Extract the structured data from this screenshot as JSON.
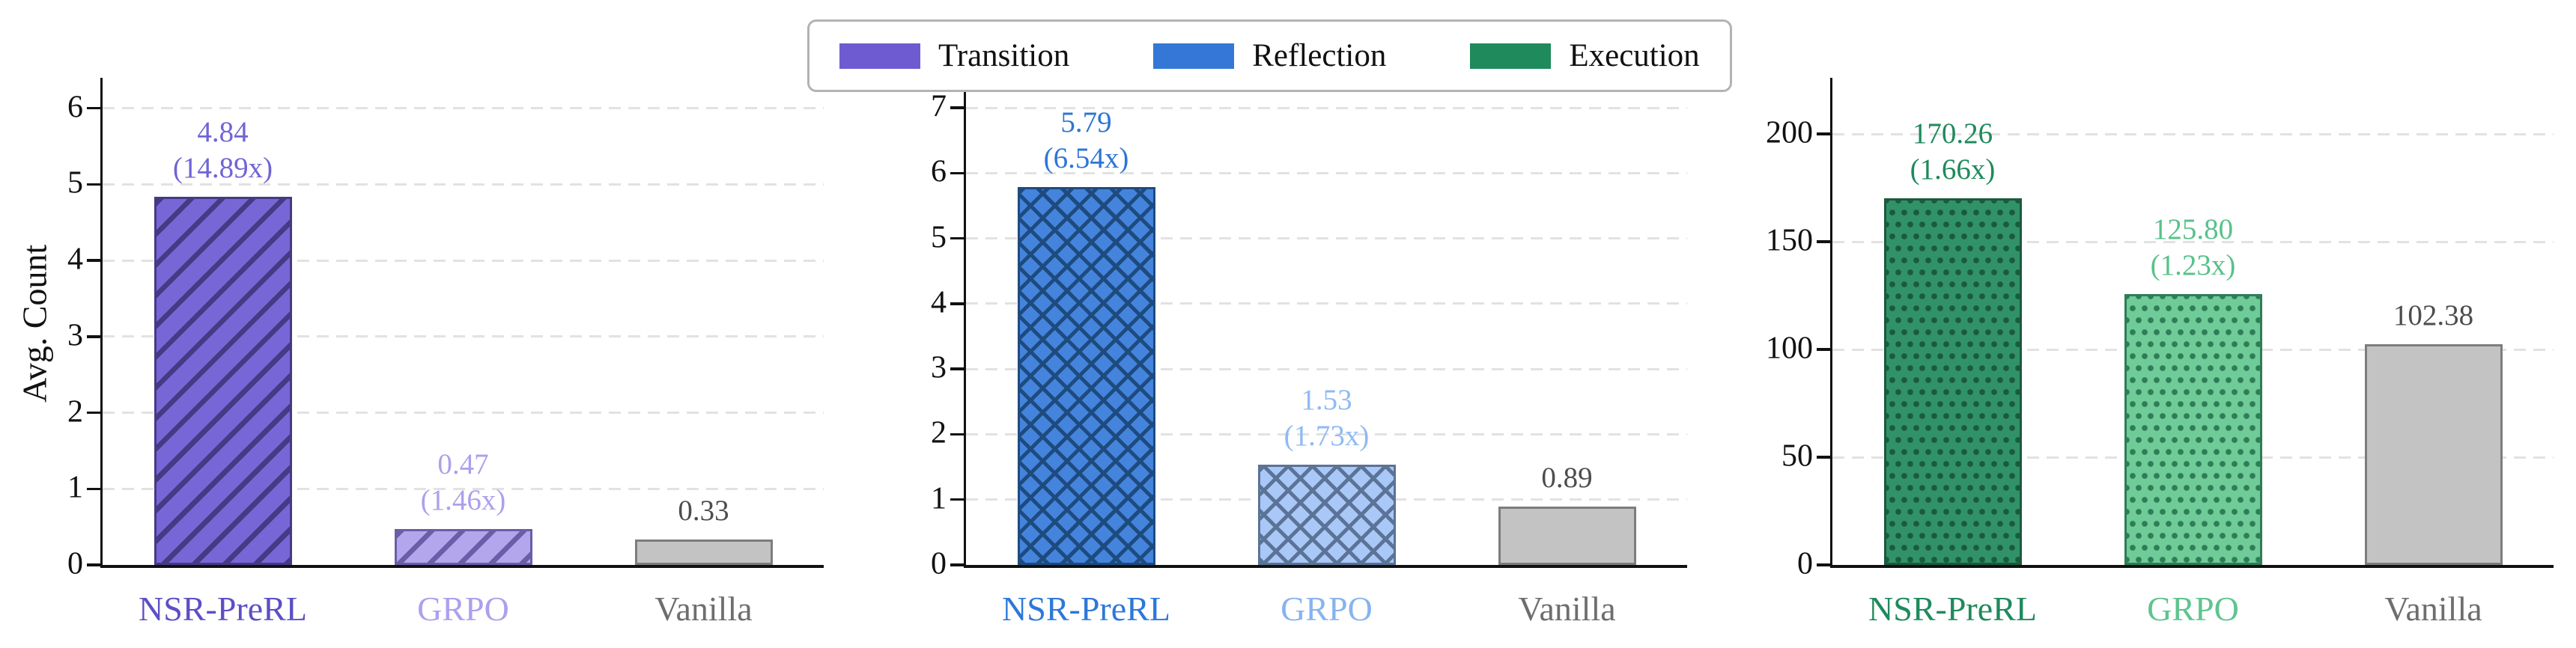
{
  "legend": {
    "items": [
      {
        "label": "Transition",
        "color": "#6f5bd1"
      },
      {
        "label": "Reflection",
        "color": "#3477d6"
      },
      {
        "label": "Execution",
        "color": "#1f8a5b"
      }
    ]
  },
  "axis": {
    "color": "#111111",
    "grid_color": "#e2e2e2",
    "tick_label_color": "#111111"
  },
  "chart_data": [
    {
      "type": "bar",
      "title": "Transition",
      "ylabel": "Avg. Count",
      "categories": [
        "NSR-PreRL",
        "GRPO",
        "Vanilla"
      ],
      "values": [
        4.84,
        0.47,
        0.33
      ],
      "yticks": [
        0,
        1,
        2,
        3,
        4,
        5,
        6
      ],
      "ytick_labels": [
        "0",
        "1",
        "2",
        "3",
        "4",
        "5",
        "6"
      ],
      "ylim": [
        0,
        6.34
      ],
      "grid": "horizontal-dashed",
      "legend_position": "top-center-shared",
      "bars": [
        {
          "category": "NSR-PreRL",
          "value": 4.84,
          "value_label": "4.84",
          "multiplier_label": "(14.89x)",
          "pattern": "diagonal",
          "fill": "#7767d6",
          "hatch": "#453a84",
          "label_color": "#7164d6",
          "category_color": "#5c4fc5"
        },
        {
          "category": "GRPO",
          "value": 0.47,
          "value_label": "0.47",
          "multiplier_label": "(1.46x)",
          "pattern": "diagonal",
          "fill": "#b4a6ec",
          "hatch": "#6c5da9",
          "label_color": "#aca0eb",
          "category_color": "#aca0ee"
        },
        {
          "category": "Vanilla",
          "value": 0.33,
          "value_label": "0.33",
          "multiplier_label": null,
          "pattern": "solid",
          "fill": "#c3c3c3",
          "hatch": "#7d7d7d",
          "label_color": "#4d4d4d",
          "category_color": "#6e6e6e"
        }
      ]
    },
    {
      "type": "bar",
      "title": "Reflection",
      "ylabel": null,
      "categories": [
        "NSR-PreRL",
        "GRPO",
        "Vanilla"
      ],
      "values": [
        5.79,
        1.53,
        0.89
      ],
      "yticks": [
        0,
        1,
        2,
        3,
        4,
        5,
        6,
        7
      ],
      "ytick_labels": [
        "0",
        "1",
        "2",
        "3",
        "4",
        "5",
        "6",
        "7"
      ],
      "ylim": [
        0,
        7.39
      ],
      "grid": "horizontal-dashed",
      "legend_position": "top-center-shared",
      "bars": [
        {
          "category": "NSR-PreRL",
          "value": 5.79,
          "value_label": "5.79",
          "multiplier_label": "(6.54x)",
          "pattern": "cross",
          "fill": "#4484dc",
          "hatch": "#1e4b7f",
          "label_color": "#2e75d5",
          "category_color": "#2c78da"
        },
        {
          "category": "GRPO",
          "value": 1.53,
          "value_label": "1.53",
          "multiplier_label": "(1.73x)",
          "pattern": "cross",
          "fill": "#a9c7f7",
          "hatch": "#5b7396",
          "label_color": "#8fbaf3",
          "category_color": "#87b3f1"
        },
        {
          "category": "Vanilla",
          "value": 0.89,
          "value_label": "0.89",
          "multiplier_label": null,
          "pattern": "solid",
          "fill": "#c3c3c3",
          "hatch": "#7d7d7d",
          "label_color": "#4d4d4d",
          "category_color": "#6e6e6e"
        }
      ]
    },
    {
      "type": "bar",
      "title": "Execution",
      "ylabel": null,
      "categories": [
        "NSR-PreRL",
        "GRPO",
        "Vanilla"
      ],
      "values": [
        170.26,
        125.8,
        102.38
      ],
      "yticks": [
        0,
        50,
        100,
        150,
        200
      ],
      "ytick_labels": [
        "0",
        "50",
        "100",
        "150",
        "200"
      ],
      "ylim": [
        0,
        224
      ],
      "grid": "horizontal-dashed",
      "legend_position": "top-center-shared",
      "bars": [
        {
          "category": "NSR-PreRL",
          "value": 170.26,
          "value_label": "170.26",
          "multiplier_label": "(1.66x)",
          "pattern": "dots",
          "fill": "#319268",
          "hatch": "#1a5a3e",
          "label_color": "#1f8a5c",
          "category_color": "#1f8a5c"
        },
        {
          "category": "GRPO",
          "value": 125.8,
          "value_label": "125.80",
          "multiplier_label": "(1.23x)",
          "pattern": "dots",
          "fill": "#6fcb98",
          "hatch": "#2e7d56",
          "label_color": "#58c18b",
          "category_color": "#5fc48e"
        },
        {
          "category": "Vanilla",
          "value": 102.38,
          "value_label": "102.38",
          "multiplier_label": null,
          "pattern": "solid",
          "fill": "#c3c3c3",
          "hatch": "#7d7d7d",
          "label_color": "#4d4d4d",
          "category_color": "#6e6e6e"
        }
      ]
    }
  ]
}
